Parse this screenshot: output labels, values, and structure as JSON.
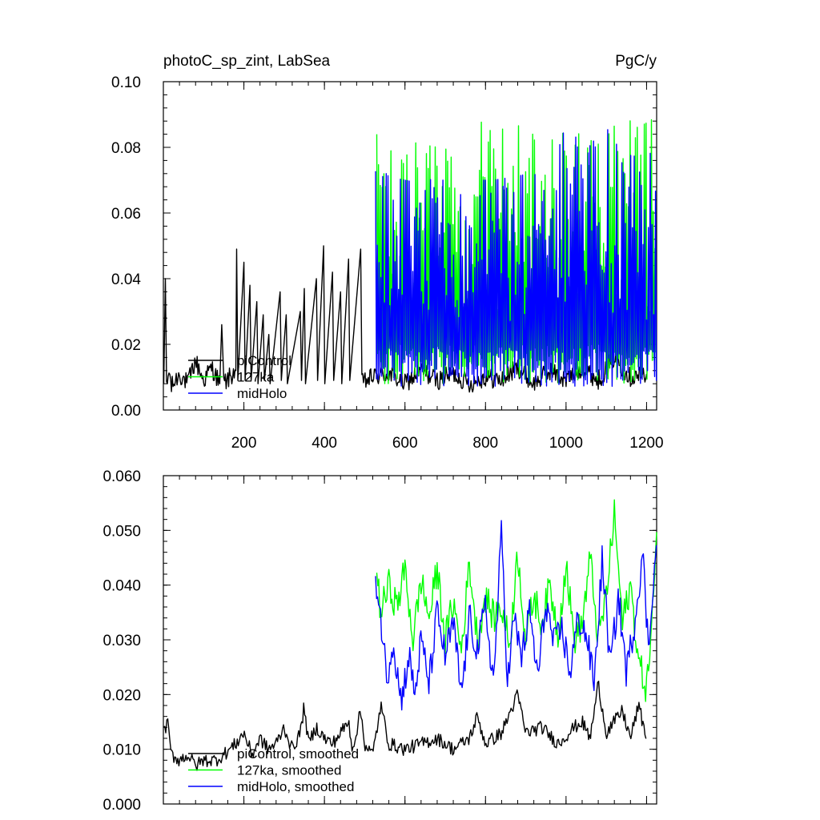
{
  "chart_data": [
    {
      "type": "line",
      "title": "photoC_sp_zint, LabSea",
      "units": "PgC/y",
      "xlim": [
        0,
        1225
      ],
      "ylim": [
        0,
        0.1
      ],
      "xticks": [
        200,
        400,
        600,
        800,
        1000,
        1200
      ],
      "xticklabels": [
        "200",
        "400",
        "600",
        "800",
        "1000",
        "1200"
      ],
      "yticks": [
        0,
        0.02,
        0.04,
        0.06,
        0.08,
        0.1
      ],
      "yticklabels": [
        "0.00",
        "0.02",
        "0.04",
        "0.06",
        "0.08",
        "0.10"
      ],
      "legend_position": "bottom-left",
      "series": [
        {
          "name": "piControl",
          "color": "#000000",
          "x_range": [
            1,
            1200
          ],
          "points": [
            [
              1,
              0.008
            ],
            [
              5,
              0.04
            ],
            [
              8,
              0.006
            ],
            [
              14,
              0.012
            ],
            [
              20,
              0.007
            ],
            [
              40,
              0.011
            ],
            [
              60,
              0.008
            ],
            [
              80,
              0.015
            ],
            [
              100,
              0.009
            ],
            [
              120,
              0.013
            ],
            [
              140,
              0.008
            ],
            [
              145,
              0.026
            ],
            [
              150,
              0.008
            ],
            [
              180,
              0.012
            ],
            [
              182,
              0.049
            ],
            [
              185,
              0.009
            ],
            [
              200,
              0.045
            ],
            [
              203,
              0.009
            ],
            [
              215,
              0.038
            ],
            [
              218,
              0.009
            ],
            [
              232,
              0.033
            ],
            [
              235,
              0.008
            ],
            [
              248,
              0.029
            ],
            [
              251,
              0.009
            ],
            [
              262,
              0.023
            ],
            [
              265,
              0.008
            ],
            [
              290,
              0.036
            ],
            [
              293,
              0.009
            ],
            [
              305,
              0.029
            ],
            [
              308,
              0.008
            ],
            [
              340,
              0.03
            ],
            [
              343,
              0.009
            ],
            [
              350,
              0.037
            ],
            [
              353,
              0.008
            ],
            [
              380,
              0.04
            ],
            [
              383,
              0.009
            ],
            [
              398,
              0.05
            ],
            [
              401,
              0.008
            ],
            [
              420,
              0.042
            ],
            [
              423,
              0.009
            ],
            [
              440,
              0.036
            ],
            [
              443,
              0.008
            ],
            [
              460,
              0.046
            ],
            [
              463,
              0.009
            ],
            [
              490,
              0.049
            ],
            [
              493,
              0.008
            ],
            [
              520,
              0.01
            ],
            [
              560,
              0.011
            ],
            [
              600,
              0.008
            ],
            [
              640,
              0.012
            ],
            [
              680,
              0.009
            ],
            [
              720,
              0.011
            ],
            [
              760,
              0.008
            ],
            [
              800,
              0.01
            ],
            [
              840,
              0.009
            ],
            [
              880,
              0.013
            ],
            [
              920,
              0.008
            ],
            [
              960,
              0.012
            ],
            [
              1000,
              0.009
            ],
            [
              1040,
              0.013
            ],
            [
              1080,
              0.009
            ],
            [
              1120,
              0.016
            ],
            [
              1160,
              0.01
            ],
            [
              1200,
              0.011
            ]
          ]
        },
        {
          "name": "127ka",
          "color": "#00ff00",
          "x_range": [
            530,
            1225
          ],
          "y_range": [
            0.008,
            0.09
          ],
          "peaks": [
            [
              540,
              0.084
            ],
            [
              570,
              0.078
            ],
            [
              600,
              0.082
            ],
            [
              640,
              0.081
            ],
            [
              680,
              0.08
            ],
            [
              720,
              0.079
            ],
            [
              750,
              0.083
            ],
            [
              790,
              0.088
            ],
            [
              820,
              0.085
            ],
            [
              860,
              0.086
            ],
            [
              900,
              0.087
            ],
            [
              940,
              0.08
            ],
            [
              980,
              0.084
            ],
            [
              1020,
              0.085
            ],
            [
              1060,
              0.082
            ],
            [
              1100,
              0.083
            ],
            [
              1140,
              0.09
            ],
            [
              1180,
              0.086
            ],
            [
              1220,
              0.089
            ]
          ]
        },
        {
          "name": "midHolo",
          "color": "#0000ff",
          "x_range": [
            527,
            1225
          ],
          "y_range": [
            0.007,
            0.09
          ],
          "peaks": [
            [
              527,
              0.076
            ],
            [
              560,
              0.071
            ],
            [
              600,
              0.07
            ],
            [
              640,
              0.069
            ],
            [
              700,
              0.072
            ],
            [
              740,
              0.074
            ],
            [
              780,
              0.07
            ],
            [
              820,
              0.07
            ],
            [
              870,
              0.071
            ],
            [
              910,
              0.072
            ],
            [
              960,
              0.071
            ],
            [
              1000,
              0.087
            ],
            [
              1050,
              0.079
            ],
            [
              1100,
              0.087
            ],
            [
              1150,
              0.082
            ],
            [
              1200,
              0.07
            ],
            [
              1222,
              0.09
            ]
          ]
        }
      ]
    },
    {
      "type": "line",
      "xlim": [
        0,
        1225
      ],
      "ylim": [
        0,
        0.06
      ],
      "yticks": [
        0,
        0.01,
        0.02,
        0.03,
        0.04,
        0.05,
        0.06
      ],
      "yticklabels": [
        "0.000",
        "0.010",
        "0.020",
        "0.030",
        "0.040",
        "0.050",
        "0.060"
      ],
      "legend_position": "bottom-left",
      "series": [
        {
          "name": "piControl, smoothed",
          "color": "#000000",
          "points": [
            [
              1,
              0.013
            ],
            [
              10,
              0.015
            ],
            [
              20,
              0.009
            ],
            [
              40,
              0.008
            ],
            [
              60,
              0.009
            ],
            [
              80,
              0.007
            ],
            [
              100,
              0.008
            ],
            [
              130,
              0.008
            ],
            [
              150,
              0.009
            ],
            [
              180,
              0.011
            ],
            [
              200,
              0.013
            ],
            [
              220,
              0.009
            ],
            [
              240,
              0.012
            ],
            [
              260,
              0.01
            ],
            [
              280,
              0.011
            ],
            [
              300,
              0.014
            ],
            [
              320,
              0.01
            ],
            [
              340,
              0.013
            ],
            [
              350,
              0.018
            ],
            [
              360,
              0.011
            ],
            [
              380,
              0.014
            ],
            [
              400,
              0.012
            ],
            [
              420,
              0.011
            ],
            [
              440,
              0.013
            ],
            [
              460,
              0.015
            ],
            [
              470,
              0.01
            ],
            [
              490,
              0.017
            ],
            [
              500,
              0.011
            ],
            [
              520,
              0.009
            ],
            [
              540,
              0.018
            ],
            [
              560,
              0.011
            ],
            [
              600,
              0.01
            ],
            [
              640,
              0.011
            ],
            [
              680,
              0.012
            ],
            [
              720,
              0.01
            ],
            [
              760,
              0.012
            ],
            [
              780,
              0.016
            ],
            [
              800,
              0.011
            ],
            [
              840,
              0.013
            ],
            [
              880,
              0.02
            ],
            [
              900,
              0.013
            ],
            [
              940,
              0.014
            ],
            [
              980,
              0.011
            ],
            [
              1020,
              0.014
            ],
            [
              1040,
              0.015
            ],
            [
              1060,
              0.012
            ],
            [
              1080,
              0.022
            ],
            [
              1100,
              0.013
            ],
            [
              1140,
              0.017
            ],
            [
              1160,
              0.012
            ],
            [
              1180,
              0.018
            ],
            [
              1200,
              0.012
            ]
          ]
        },
        {
          "name": "127ka, smoothed",
          "color": "#00ff00",
          "points": [
            [
              530,
              0.042
            ],
            [
              540,
              0.035
            ],
            [
              560,
              0.04
            ],
            [
              580,
              0.036
            ],
            [
              600,
              0.043
            ],
            [
              620,
              0.03
            ],
            [
              640,
              0.041
            ],
            [
              660,
              0.034
            ],
            [
              680,
              0.043
            ],
            [
              700,
              0.03
            ],
            [
              720,
              0.037
            ],
            [
              740,
              0.028
            ],
            [
              760,
              0.044
            ],
            [
              780,
              0.03
            ],
            [
              800,
              0.038
            ],
            [
              820,
              0.034
            ],
            [
              840,
              0.036
            ],
            [
              860,
              0.029
            ],
            [
              880,
              0.046
            ],
            [
              900,
              0.03
            ],
            [
              920,
              0.038
            ],
            [
              940,
              0.033
            ],
            [
              960,
              0.04
            ],
            [
              980,
              0.031
            ],
            [
              1000,
              0.044
            ],
            [
              1020,
              0.03
            ],
            [
              1040,
              0.033
            ],
            [
              1060,
              0.045
            ],
            [
              1080,
              0.03
            ],
            [
              1100,
              0.038
            ],
            [
              1120,
              0.053
            ],
            [
              1140,
              0.033
            ],
            [
              1160,
              0.04
            ],
            [
              1180,
              0.026
            ],
            [
              1200,
              0.021
            ],
            [
              1210,
              0.03
            ],
            [
              1225,
              0.047
            ]
          ]
        },
        {
          "name": "midHolo, smoothed",
          "color": "#0000ff",
          "points": [
            [
              527,
              0.042
            ],
            [
              540,
              0.034
            ],
            [
              555,
              0.023
            ],
            [
              570,
              0.03
            ],
            [
              590,
              0.019
            ],
            [
              610,
              0.027
            ],
            [
              625,
              0.02
            ],
            [
              640,
              0.03
            ],
            [
              660,
              0.022
            ],
            [
              680,
              0.035
            ],
            [
              700,
              0.027
            ],
            [
              720,
              0.033
            ],
            [
              740,
              0.02
            ],
            [
              760,
              0.034
            ],
            [
              780,
              0.028
            ],
            [
              800,
              0.036
            ],
            [
              820,
              0.022
            ],
            [
              840,
              0.05
            ],
            [
              855,
              0.022
            ],
            [
              870,
              0.034
            ],
            [
              890,
              0.027
            ],
            [
              910,
              0.035
            ],
            [
              930,
              0.023
            ],
            [
              950,
              0.037
            ],
            [
              970,
              0.029
            ],
            [
              990,
              0.032
            ],
            [
              1010,
              0.024
            ],
            [
              1030,
              0.034
            ],
            [
              1050,
              0.031
            ],
            [
              1070,
              0.022
            ],
            [
              1090,
              0.045
            ],
            [
              1110,
              0.025
            ],
            [
              1130,
              0.038
            ],
            [
              1150,
              0.024
            ],
            [
              1170,
              0.033
            ],
            [
              1190,
              0.046
            ],
            [
              1205,
              0.028
            ],
            [
              1215,
              0.04
            ],
            [
              1225,
              0.046
            ]
          ]
        }
      ]
    }
  ]
}
